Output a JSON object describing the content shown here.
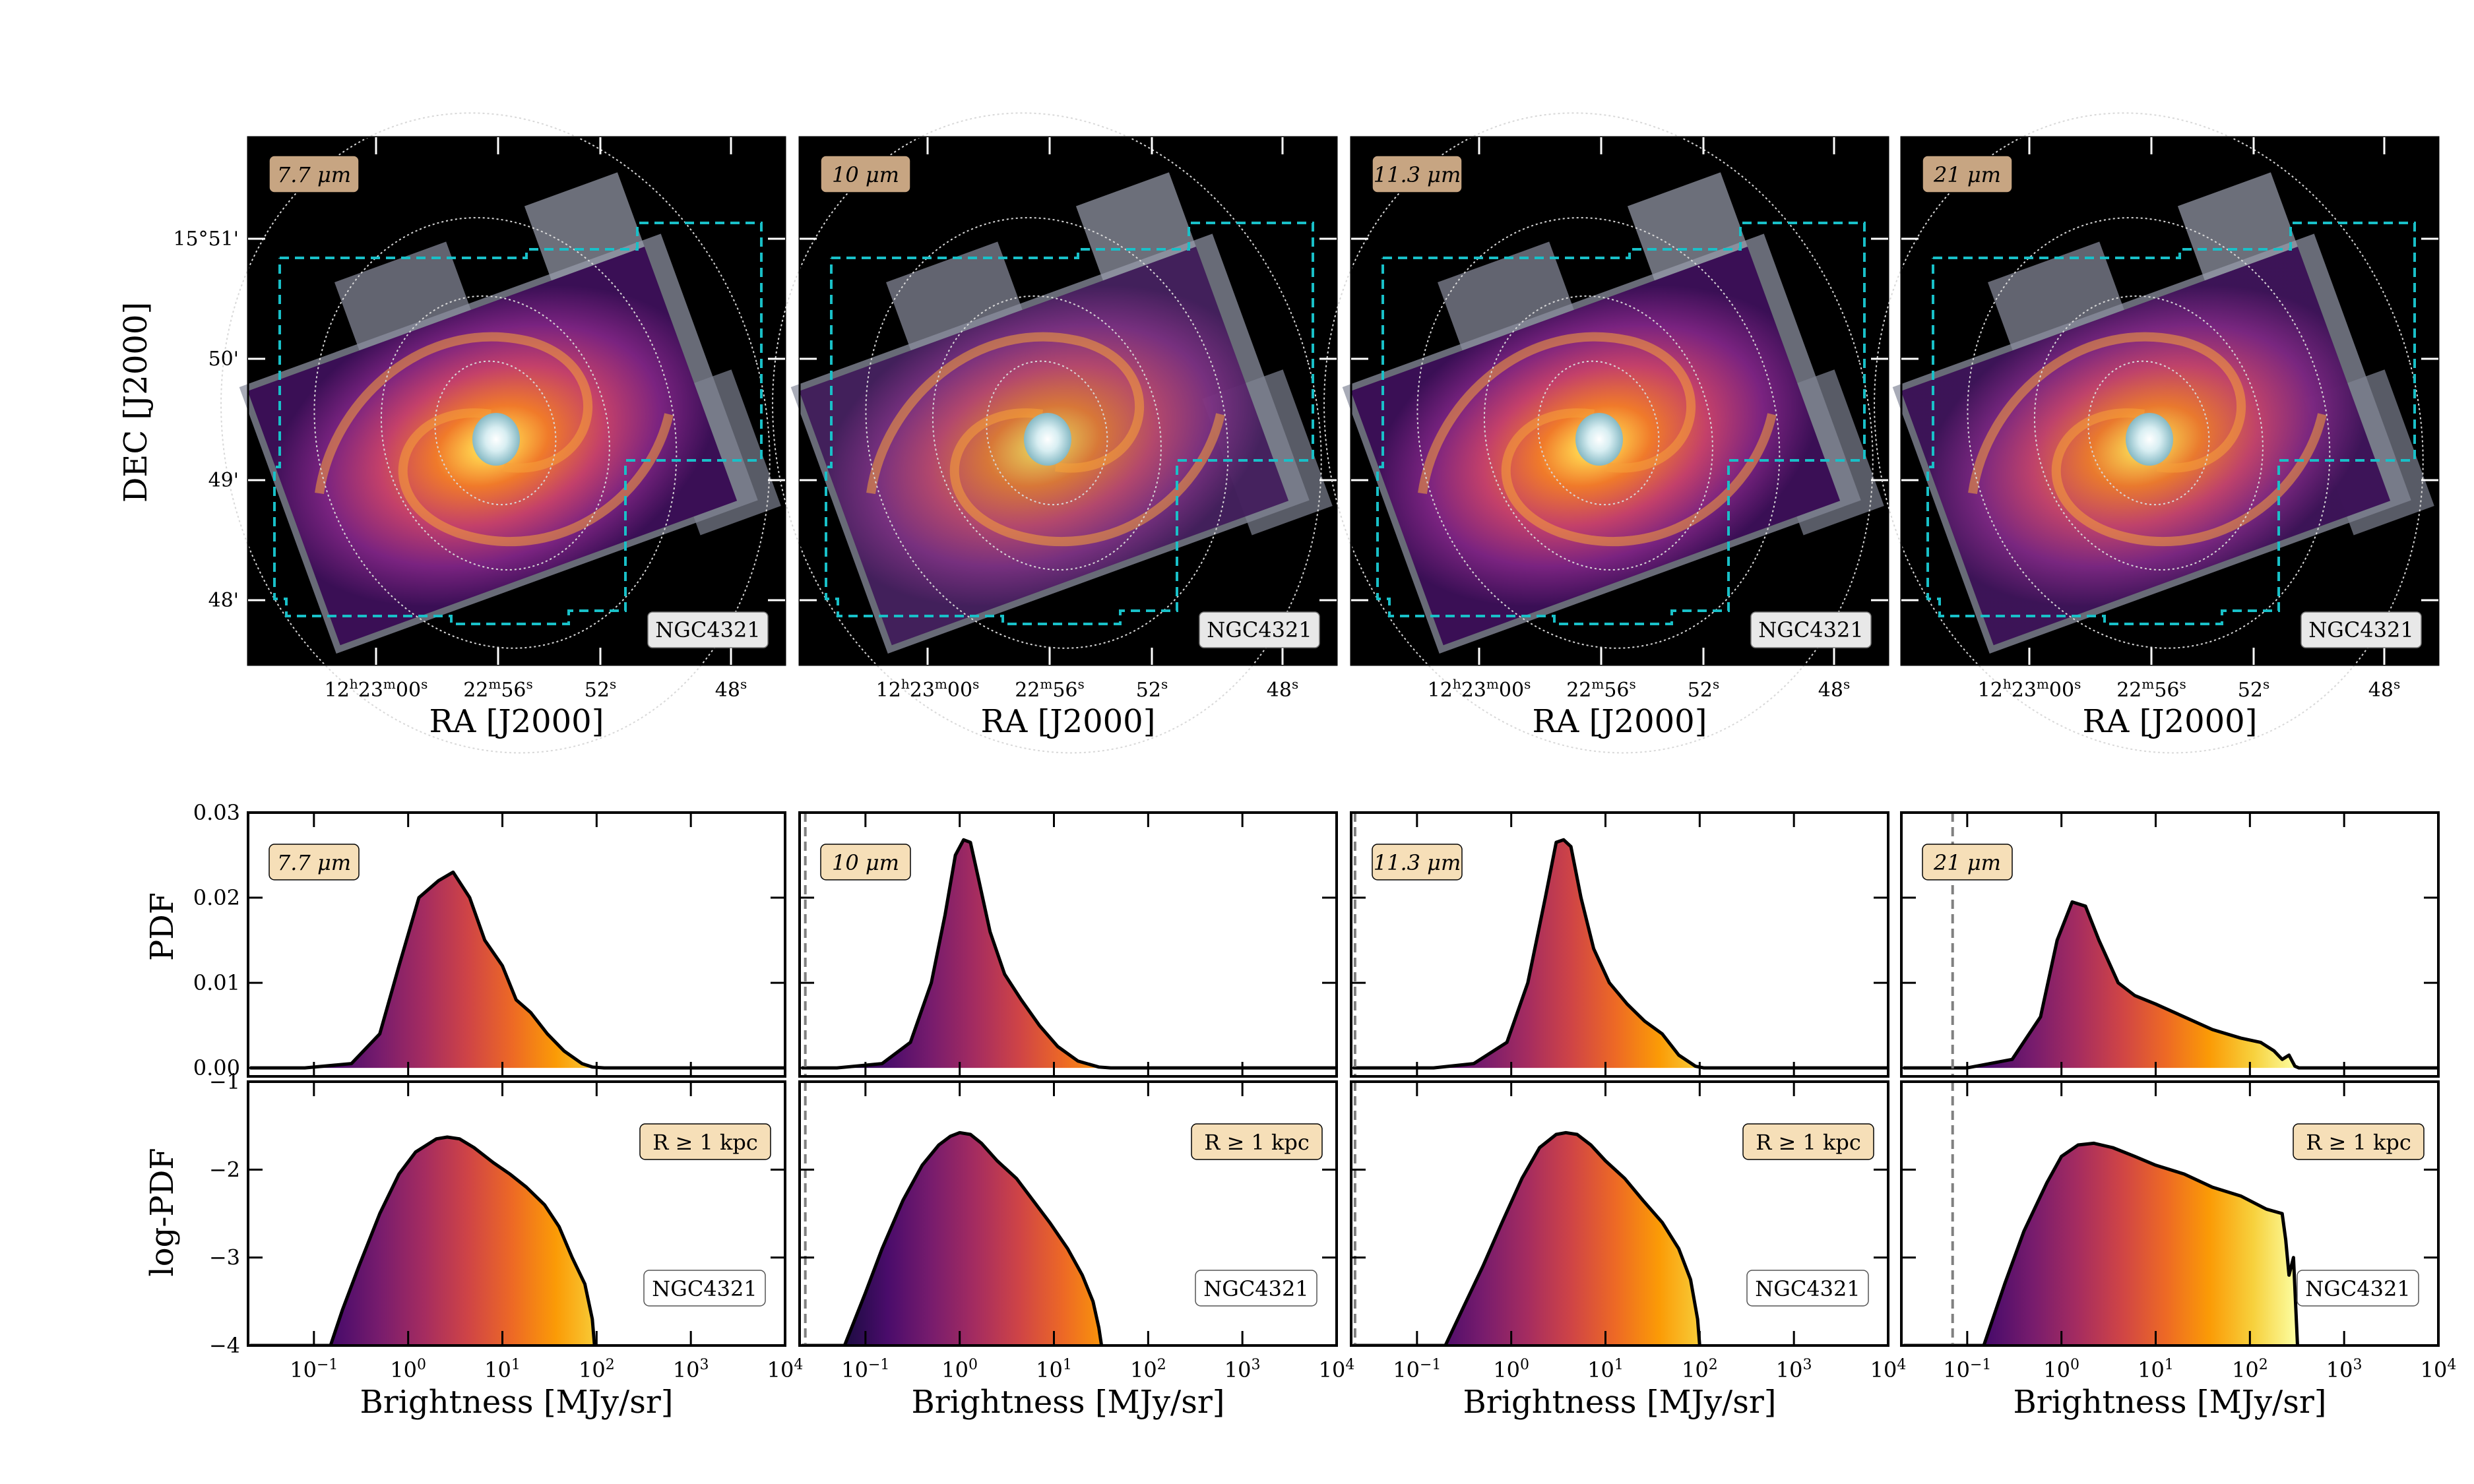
{
  "colors": {
    "dashed_outline": "#19c0c8",
    "label_fill": "#f6dfb8",
    "label_fill_top": "#c7a582",
    "curve": "#000000",
    "vline": "#808080",
    "inferno": [
      "#000004",
      "#1b0c41",
      "#4a0c6b",
      "#781c6d",
      "#a52c60",
      "#cf4446",
      "#ed6925",
      "#fb9b06",
      "#f7d13d",
      "#fcffa4"
    ]
  },
  "galaxy": "NGC4321",
  "images": {
    "panels": [
      {
        "band": "7.7 μm",
        "galaxy_label": "NGC4321",
        "contrast": 1.0
      },
      {
        "band": "10 μm",
        "galaxy_label": "NGC4321",
        "contrast": 0.82
      },
      {
        "band": "11.3 μm",
        "galaxy_label": "NGC4321",
        "contrast": 1.05
      },
      {
        "band": "21 μm",
        "galaxy_label": "NGC4321",
        "contrast": 0.95
      }
    ],
    "ylabel": "DEC [J2000]",
    "xlabel": "RA [J2000]",
    "dec_ticks": [
      "15°51'",
      "50'",
      "49'",
      "48'"
    ],
    "ra_ticks": [
      {
        "h": "12",
        "hs": "h",
        "m": "23",
        "ms": "m",
        "s": "00",
        "ss": "s"
      },
      {
        "m": "22",
        "ms": "m",
        "s": "56",
        "ss": "s"
      },
      {
        "s": "52",
        "ss": "s"
      },
      {
        "s": "48",
        "ss": "s"
      }
    ]
  },
  "chart_data": [
    {
      "type": "area",
      "row": "PDF",
      "ylabel": "PDF",
      "xscale": "log",
      "xlim": [
        0.02,
        10000
      ],
      "ylim": [
        -0.001,
        0.03
      ],
      "yticks": [
        "0.00",
        "0.01",
        "0.02",
        "0.03"
      ],
      "yticks_values": [
        0.0,
        0.01,
        0.02,
        0.03
      ],
      "panels": [
        {
          "band": "7.7 μm",
          "vline_x": null,
          "x": [
            0.08,
            0.25,
            0.5,
            0.8,
            1.3,
            2.1,
            3.0,
            4.5,
            6.5,
            10,
            14,
            20,
            30,
            45,
            70,
            90,
            120
          ],
          "y": [
            0.0,
            0.0005,
            0.004,
            0.012,
            0.02,
            0.022,
            0.023,
            0.02,
            0.015,
            0.012,
            0.008,
            0.0065,
            0.004,
            0.002,
            0.0005,
            0.0001,
            0.0
          ]
        },
        {
          "band": "10 μm",
          "vline_x": 0.023,
          "x": [
            0.05,
            0.15,
            0.3,
            0.5,
            0.7,
            0.9,
            1.1,
            1.3,
            1.6,
            2.1,
            3.0,
            4.5,
            7.0,
            11,
            18,
            30,
            40
          ],
          "y": [
            0.0,
            0.0005,
            0.003,
            0.01,
            0.018,
            0.025,
            0.0268,
            0.0265,
            0.022,
            0.016,
            0.011,
            0.008,
            0.005,
            0.0025,
            0.0008,
            0.0001,
            0.0
          ]
        },
        {
          "band": "11.3 μm",
          "vline_x": 0.022,
          "x": [
            0.15,
            0.4,
            0.9,
            1.5,
            2.3,
            3.0,
            3.6,
            4.3,
            5.5,
            7.5,
            11,
            17,
            26,
            40,
            60,
            90,
            110
          ],
          "y": [
            0.0,
            0.0005,
            0.003,
            0.01,
            0.02,
            0.0265,
            0.0268,
            0.026,
            0.02,
            0.014,
            0.01,
            0.0075,
            0.0055,
            0.004,
            0.0015,
            0.0002,
            0.0
          ]
        },
        {
          "band": "21 μm",
          "vline_x": 0.07,
          "x": [
            0.1,
            0.3,
            0.6,
            0.9,
            1.3,
            1.8,
            2.5,
            4.0,
            6.0,
            10,
            20,
            40,
            80,
            130,
            180,
            220,
            260,
            300,
            330
          ],
          "y": [
            0.0,
            0.001,
            0.006,
            0.015,
            0.0195,
            0.019,
            0.015,
            0.01,
            0.0085,
            0.0075,
            0.006,
            0.0045,
            0.0035,
            0.003,
            0.002,
            0.001,
            0.0015,
            0.0002,
            0.0
          ]
        }
      ]
    },
    {
      "type": "area",
      "row": "log-PDF",
      "ylabel": "log-PDF",
      "xlabel": "Brightness [MJy/sr]",
      "xscale": "log",
      "xlim": [
        0.02,
        10000
      ],
      "ylim": [
        -4,
        -1
      ],
      "yticks": [
        "−1",
        "−2",
        "−3",
        "−4"
      ],
      "yticks_values": [
        -1,
        -2,
        -3,
        -4
      ],
      "xticks": [
        "10",
        "10",
        "10",
        "10",
        "10",
        "10"
      ],
      "xticks_exp": [
        "−1",
        "0",
        "1",
        "2",
        "3",
        "4"
      ],
      "xticks_values": [
        0.1,
        1,
        10,
        100,
        1000,
        10000
      ],
      "annotation": "R ≥ 1 kpc",
      "panels": [
        {
          "band": "7.7 μm",
          "galaxy_label": "NGC4321",
          "vline_x": null,
          "x": [
            0.15,
            0.2,
            0.3,
            0.5,
            0.8,
            1.2,
            2.0,
            2.6,
            3.5,
            5.0,
            8.0,
            12,
            18,
            28,
            40,
            55,
            75,
            90,
            95
          ],
          "y": [
            -4.0,
            -3.6,
            -3.1,
            -2.5,
            -2.05,
            -1.8,
            -1.65,
            -1.63,
            -1.65,
            -1.75,
            -1.92,
            -2.05,
            -2.2,
            -2.4,
            -2.65,
            -3.0,
            -3.3,
            -3.7,
            -4.0
          ]
        },
        {
          "band": "10 μm",
          "galaxy_label": "NGC4321",
          "vline_x": 0.023,
          "x": [
            0.06,
            0.1,
            0.15,
            0.25,
            0.4,
            0.6,
            0.8,
            1.0,
            1.3,
            1.7,
            2.5,
            4.0,
            6.0,
            9.0,
            14,
            20,
            26,
            30,
            32
          ],
          "y": [
            -4.0,
            -3.4,
            -2.9,
            -2.35,
            -1.95,
            -1.72,
            -1.62,
            -1.58,
            -1.6,
            -1.7,
            -1.9,
            -2.1,
            -2.35,
            -2.6,
            -2.9,
            -3.2,
            -3.5,
            -3.8,
            -4.0
          ]
        },
        {
          "band": "11.3 μm",
          "galaxy_label": "NGC4321",
          "vline_x": 0.022,
          "x": [
            0.2,
            0.3,
            0.5,
            0.8,
            1.3,
            2.0,
            3.0,
            3.8,
            5.0,
            7.0,
            10,
            16,
            25,
            40,
            60,
            80,
            95,
            100
          ],
          "y": [
            -4.0,
            -3.6,
            -3.1,
            -2.6,
            -2.1,
            -1.75,
            -1.6,
            -1.58,
            -1.6,
            -1.72,
            -1.9,
            -2.1,
            -2.35,
            -2.6,
            -2.9,
            -3.25,
            -3.7,
            -4.0
          ]
        },
        {
          "band": "21 μm",
          "galaxy_label": "NGC4321",
          "vline_x": 0.07,
          "x": [
            0.15,
            0.25,
            0.4,
            0.7,
            1.0,
            1.5,
            2.2,
            3.5,
            6.0,
            10,
            20,
            40,
            80,
            150,
            220,
            240,
            260,
            290,
            320
          ],
          "y": [
            -4.0,
            -3.3,
            -2.7,
            -2.15,
            -1.85,
            -1.72,
            -1.7,
            -1.75,
            -1.85,
            -1.95,
            -2.05,
            -2.2,
            -2.3,
            -2.45,
            -2.5,
            -2.8,
            -3.2,
            -3.0,
            -4.0
          ]
        }
      ]
    }
  ]
}
